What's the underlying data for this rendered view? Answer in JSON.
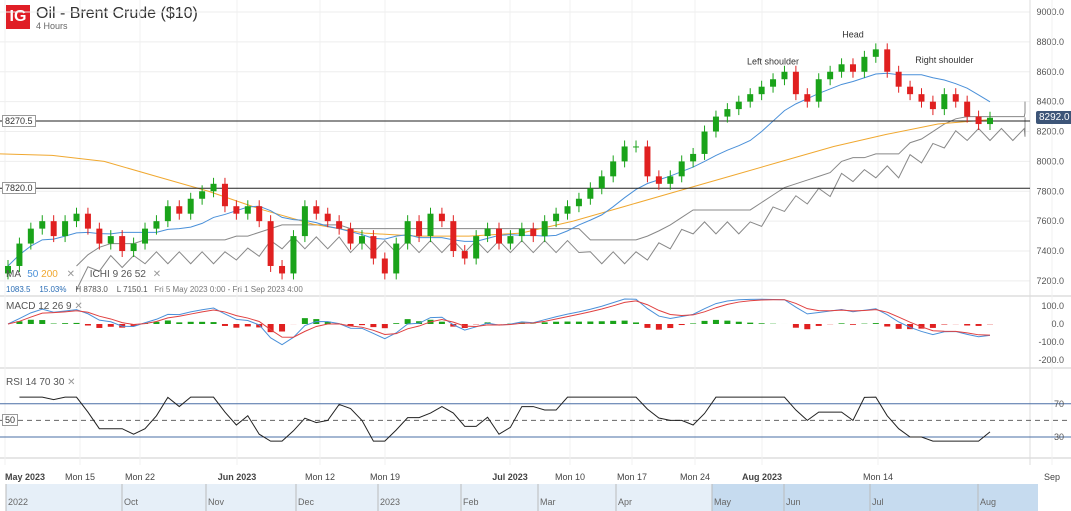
{
  "header": {
    "logo": "IG",
    "title": "Oil - Brent Crude ($10)",
    "interval": "4 Hours"
  },
  "legend": {
    "ma_label": "MA",
    "ma_fast": "50",
    "ma_slow": "200",
    "ichi_label": "ICHI",
    "ichi_params": "9  26  52",
    "close": "✕",
    "stats": {
      "change": "1083.5",
      "change_pct": "15.03%",
      "high": "H 8783.0",
      "low": "L 7150.1",
      "range": "Fri 5 May 2023 0:00 - Fri 1 Sep 2023 4:00"
    }
  },
  "macd": {
    "label": "MACD",
    "params": "12  26  9",
    "ticks": [
      "100.0",
      "0.0",
      "-100.0",
      "-200.0"
    ]
  },
  "rsi": {
    "label": "RSI",
    "params": "14  70  30",
    "ticks": [
      "70",
      "30"
    ],
    "mid": "50"
  },
  "colors": {
    "up": "#1aa31a",
    "down": "#e02020",
    "ma50": "#4a90d9",
    "ma200": "#f0a830",
    "cloud": "#888888",
    "brand": "#e01e26"
  },
  "chart_data": {
    "type": "candlestick",
    "ylim": [
      7150,
      9050
    ],
    "y_ticks": [
      "9000.0",
      "8800.0",
      "8600.0",
      "8400.0",
      "8200.0",
      "8000.0",
      "7800.0",
      "7600.0",
      "7400.0",
      "7200.0"
    ],
    "x_ticks": [
      "May 2023",
      "Mon 15",
      "Mon 22",
      "Jun 2023",
      "Mon 12",
      "Mon 19",
      "Jul 2023",
      "Mon 10",
      "Mon 17",
      "Mon 24",
      "Aug 2023",
      "Mon 14",
      "Sep"
    ],
    "last_price": "8292.0",
    "levels": [
      {
        "label": "8270.5",
        "value": 8270.5
      },
      {
        "label": "7820.0",
        "value": 7820.0
      }
    ],
    "annotations": [
      {
        "text": "Left shoulder",
        "date_index": 67,
        "price": 8650
      },
      {
        "text": "Head",
        "date_index": 74,
        "price": 8830
      },
      {
        "text": "Right shoulder",
        "date_index": 82,
        "price": 8660
      }
    ],
    "closes": [
      7300,
      7450,
      7550,
      7600,
      7500,
      7600,
      7650,
      7550,
      7450,
      7500,
      7400,
      7450,
      7550,
      7600,
      7700,
      7650,
      7750,
      7800,
      7850,
      7700,
      7650,
      7700,
      7600,
      7300,
      7250,
      7500,
      7700,
      7650,
      7600,
      7550,
      7450,
      7500,
      7350,
      7250,
      7450,
      7600,
      7500,
      7650,
      7600,
      7400,
      7350,
      7500,
      7550,
      7450,
      7500,
      7550,
      7500,
      7600,
      7650,
      7700,
      7750,
      7820,
      7900,
      8000,
      8100,
      8100,
      7900,
      7850,
      7900,
      8000,
      8050,
      8200,
      8300,
      8350,
      8400,
      8450,
      8500,
      8550,
      8600,
      8450,
      8400,
      8550,
      8600,
      8650,
      8600,
      8700,
      8750,
      8600,
      8500,
      8450,
      8400,
      8350,
      8450,
      8400,
      8300,
      8250,
      8292
    ],
    "ma200": [
      8050,
      8040,
      8000,
      7900,
      7800,
      7680,
      7580,
      7520,
      7500,
      7500,
      7520,
      7600,
      7700,
      7800,
      7900,
      8000,
      8100,
      8180,
      8250,
      8280
    ],
    "navigator_labels": [
      "2022",
      "Oct",
      "Nov",
      "Dec",
      "2023",
      "Feb",
      "Mar",
      "Apr",
      "May",
      "Jun",
      "Jul",
      "Aug"
    ]
  }
}
